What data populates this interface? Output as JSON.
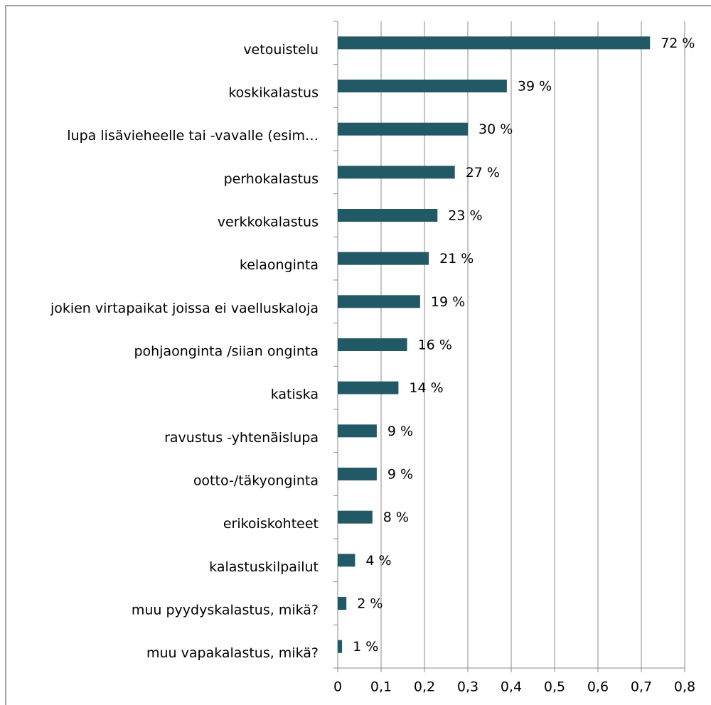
{
  "chart_data": {
    "type": "bar",
    "orientation": "horizontal",
    "categories": [
      "vetouistelu",
      "koskikalastus",
      "lupa lisävieheelle tai -vavalle (esim…",
      "perhokalastus",
      "verkkokalastus",
      "kelaonginta",
      "jokien virtapaikat joissa ei vaelluskaloja",
      "pohjaonginta /siian onginta",
      "katiska",
      "ravustus -yhtenäislupa",
      "ootto-/täkyonginta",
      "erikoiskohteet",
      "kalastuskilpailut",
      "muu pyydyskalastus, mikä?",
      "muu vapakalastus, mikä?"
    ],
    "values": [
      0.72,
      0.39,
      0.3,
      0.27,
      0.23,
      0.21,
      0.19,
      0.16,
      0.14,
      0.09,
      0.09,
      0.08,
      0.04,
      0.02,
      0.01
    ],
    "value_labels": [
      "72 %",
      "39 %",
      "30 %",
      "27 %",
      "23 %",
      "21 %",
      "19 %",
      "16 %",
      "14 %",
      "9 %",
      "9 %",
      "8 %",
      "4 %",
      "2 %",
      "1 %"
    ],
    "color": "#215967",
    "xlim": [
      0,
      0.8
    ],
    "xticks": [
      0,
      {
        "value": 0.1,
        "label": "0,1"
      },
      {
        "value": 0.2,
        "label": "0,2"
      },
      {
        "value": 0.3,
        "label": "0,3"
      },
      {
        "value": 0.4,
        "label": "0,4"
      },
      {
        "value": 0.5,
        "label": "0,5"
      },
      {
        "value": 0.6,
        "label": "0,6"
      },
      {
        "value": 0.7,
        "label": "0,7"
      },
      {
        "value": 0.8,
        "label": "0,8"
      }
    ],
    "grid": true
  }
}
